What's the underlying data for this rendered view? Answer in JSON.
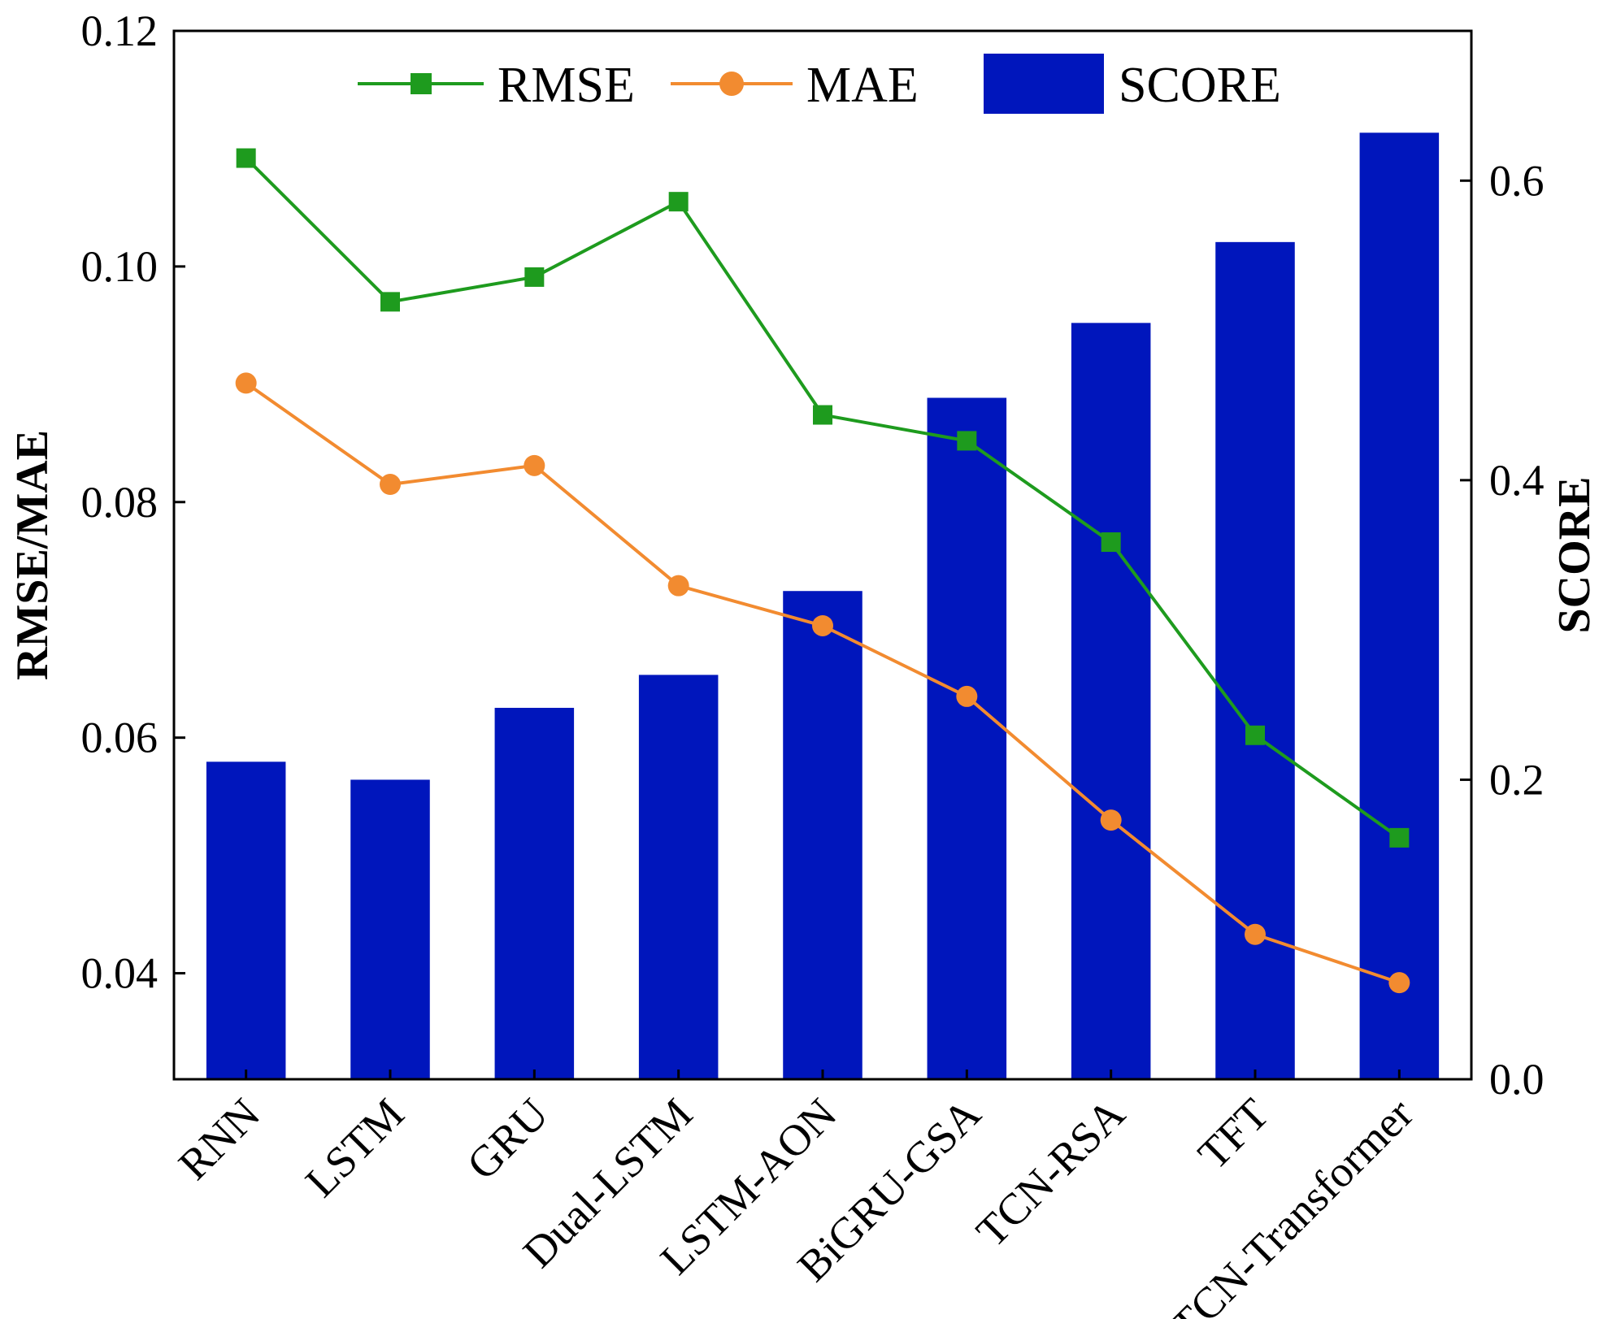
{
  "chart_data": {
    "type": "bar+line",
    "categories": [
      "RNN",
      "LSTM",
      "GRU",
      "Dual-LSTM",
      "LSTM-AON",
      "BiGRU-GSA",
      "TCN-RSA",
      "TFT",
      "TCN-Transformer"
    ],
    "bar_series": {
      "name": "SCORE",
      "axis": "right",
      "color": "#0016BC",
      "values": [
        0.212,
        0.2,
        0.248,
        0.27,
        0.326,
        0.455,
        0.505,
        0.559,
        0.632
      ]
    },
    "line_series": [
      {
        "name": "RMSE",
        "axis": "left",
        "color": "#1E9B1E",
        "marker": "square",
        "values": [
          0.1092,
          0.097,
          0.0991,
          0.1055,
          0.0874,
          0.0852,
          0.0766,
          0.0602,
          0.0515
        ]
      },
      {
        "name": "MAE",
        "axis": "left",
        "color": "#F28B30",
        "marker": "circle",
        "values": [
          0.0901,
          0.0815,
          0.0831,
          0.0729,
          0.0695,
          0.0635,
          0.053,
          0.0433,
          0.0392
        ]
      }
    ],
    "ylabel_left": "RMSE/MAE",
    "ylabel_right": "SCORE",
    "ylim_left": [
      0.031,
      0.12
    ],
    "ylim_right": [
      0.0,
      0.7
    ],
    "yticks_left": [
      "0.04",
      "0.06",
      "0.08",
      "0.10",
      "0.12"
    ],
    "yticks_left_values": [
      0.04,
      0.06,
      0.08,
      0.1,
      0.12
    ],
    "yticks_right": [
      "0.0",
      "0.2",
      "0.4",
      "0.6"
    ],
    "yticks_right_values": [
      0.0,
      0.2,
      0.4,
      0.6
    ],
    "legend": [
      "RMSE",
      "MAE",
      "SCORE"
    ],
    "legend_position": "top-center",
    "grid": false
  }
}
